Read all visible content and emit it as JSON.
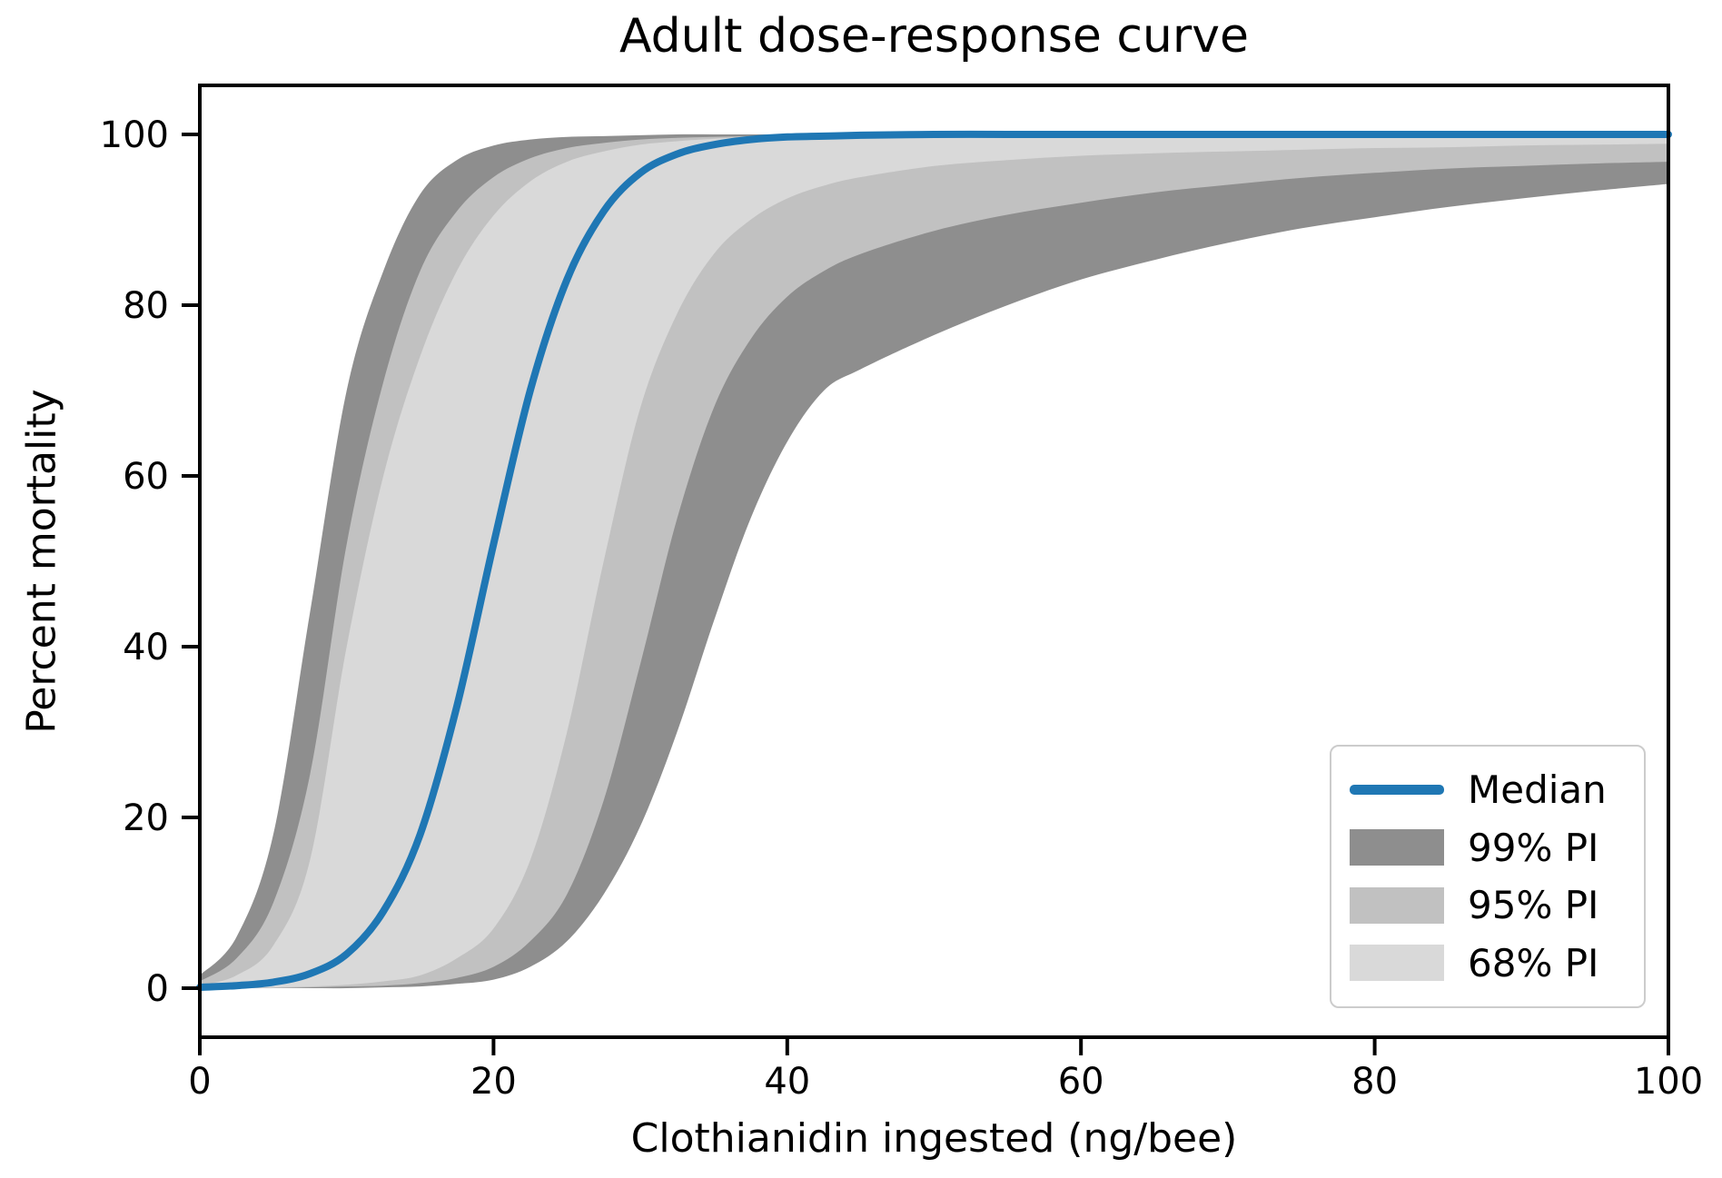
{
  "figure": {
    "title": "Adult dose-response curve"
  },
  "axes": {
    "xlabel": "Clothianidin ingested (ng/bee)",
    "ylabel": "Percent mortality",
    "x_tick_labels": [
      "0",
      "20",
      "40",
      "60",
      "80",
      "100"
    ],
    "y_tick_labels": [
      "0",
      "20",
      "40",
      "60",
      "80",
      "100"
    ]
  },
  "legend": {
    "entries": [
      {
        "label": "Median",
        "swatch": "line",
        "color": "#1f77b4"
      },
      {
        "label": "99% PI",
        "swatch": "patch",
        "color": "#8e8e8e"
      },
      {
        "label": "95% PI",
        "swatch": "patch",
        "color": "#c1c1c1"
      },
      {
        "label": "68% PI",
        "swatch": "patch",
        "color": "#d9d9d9"
      }
    ],
    "position": "lower right"
  },
  "colors": {
    "median": "#1f77b4",
    "pi99": "#8e8e8e",
    "pi95": "#c1c1c1",
    "pi68": "#d9d9d9",
    "axis": "#000000",
    "background": "#ffffff"
  },
  "chart_data": {
    "type": "line",
    "title": "Adult dose-response curve",
    "xlabel": "Clothianidin ingested (ng/bee)",
    "ylabel": "Percent mortality",
    "xlim": [
      0,
      100
    ],
    "ylim": [
      0,
      100
    ],
    "x_ticks": [
      0,
      20,
      40,
      60,
      80,
      100
    ],
    "y_ticks": [
      0,
      20,
      40,
      60,
      80,
      100
    ],
    "grid": false,
    "legend_position": "lower right",
    "x": [
      0,
      2.5,
      5,
      7.5,
      10,
      12.5,
      15,
      17.5,
      20,
      22.5,
      25,
      27.5,
      30,
      32.5,
      35,
      37.5,
      40,
      42.5,
      45,
      50,
      55,
      60,
      65,
      70,
      75,
      80,
      85,
      90,
      95,
      100
    ],
    "series": [
      {
        "name": "99% PI",
        "type": "band",
        "color": "#8e8e8e",
        "lower": [
          0,
          0,
          0,
          0,
          0,
          0.1,
          0.2,
          0.5,
          1,
          2.5,
          5.5,
          11,
          19,
          30,
          43,
          55,
          64,
          70,
          72.5,
          76.5,
          80,
          83,
          85.3,
          87.3,
          89,
          90.3,
          91.5,
          92.5,
          93.4,
          94.2
        ],
        "upper": [
          1.5,
          6,
          18,
          44,
          70,
          84,
          93,
          97,
          98.7,
          99.4,
          99.7,
          99.8,
          99.9,
          100,
          100,
          100,
          100,
          100,
          100,
          100,
          100,
          100,
          100,
          100,
          100,
          100,
          100,
          100,
          100,
          100
        ]
      },
      {
        "name": "95% PI",
        "type": "band",
        "color": "#c1c1c1",
        "lower": [
          0,
          0,
          0,
          0.1,
          0.2,
          0.3,
          0.6,
          1.2,
          2.5,
          5.5,
          11,
          22,
          38,
          55,
          68,
          76,
          81,
          84,
          86,
          88.7,
          90.6,
          92,
          93.2,
          94.1,
          94.9,
          95.5,
          96,
          96.3,
          96.6,
          96.8
        ],
        "upper": [
          0.8,
          3.5,
          10,
          25,
          52,
          71,
          84,
          91,
          95,
          97.2,
          98.4,
          99,
          99.4,
          99.6,
          99.7,
          99.8,
          99.9,
          99.9,
          100,
          100,
          100,
          100,
          100,
          100,
          100,
          100,
          100,
          100,
          100,
          100
        ]
      },
      {
        "name": "68% PI",
        "type": "band",
        "color": "#d9d9d9",
        "lower": [
          0,
          0,
          0.1,
          0.2,
          0.4,
          0.8,
          1.5,
          3.5,
          7,
          15,
          30,
          50,
          68,
          79,
          86,
          90,
          92.5,
          94,
          95,
          96.3,
          97,
          97.5,
          97.8,
          98,
          98.2,
          98.4,
          98.5,
          98.7,
          98.8,
          98.9
        ],
        "upper": [
          0.3,
          1.5,
          5,
          15,
          40,
          60,
          74,
          84,
          90.5,
          94.5,
          96.8,
          98,
          98.8,
          99.2,
          99.5,
          99.7,
          99.8,
          99.9,
          99.9,
          100,
          100,
          100,
          100,
          100,
          100,
          100,
          100,
          100,
          100,
          100
        ]
      },
      {
        "name": "Median",
        "type": "line",
        "color": "#1f77b4",
        "linewidth": 8,
        "values": [
          0.1,
          0.3,
          0.7,
          1.7,
          4,
          9,
          18,
          33,
          52,
          70,
          83,
          91,
          95.5,
          97.7,
          98.8,
          99.4,
          99.7,
          99.8,
          99.9,
          100,
          100,
          100,
          100,
          100,
          100,
          100,
          100,
          100,
          100,
          100
        ]
      }
    ]
  }
}
